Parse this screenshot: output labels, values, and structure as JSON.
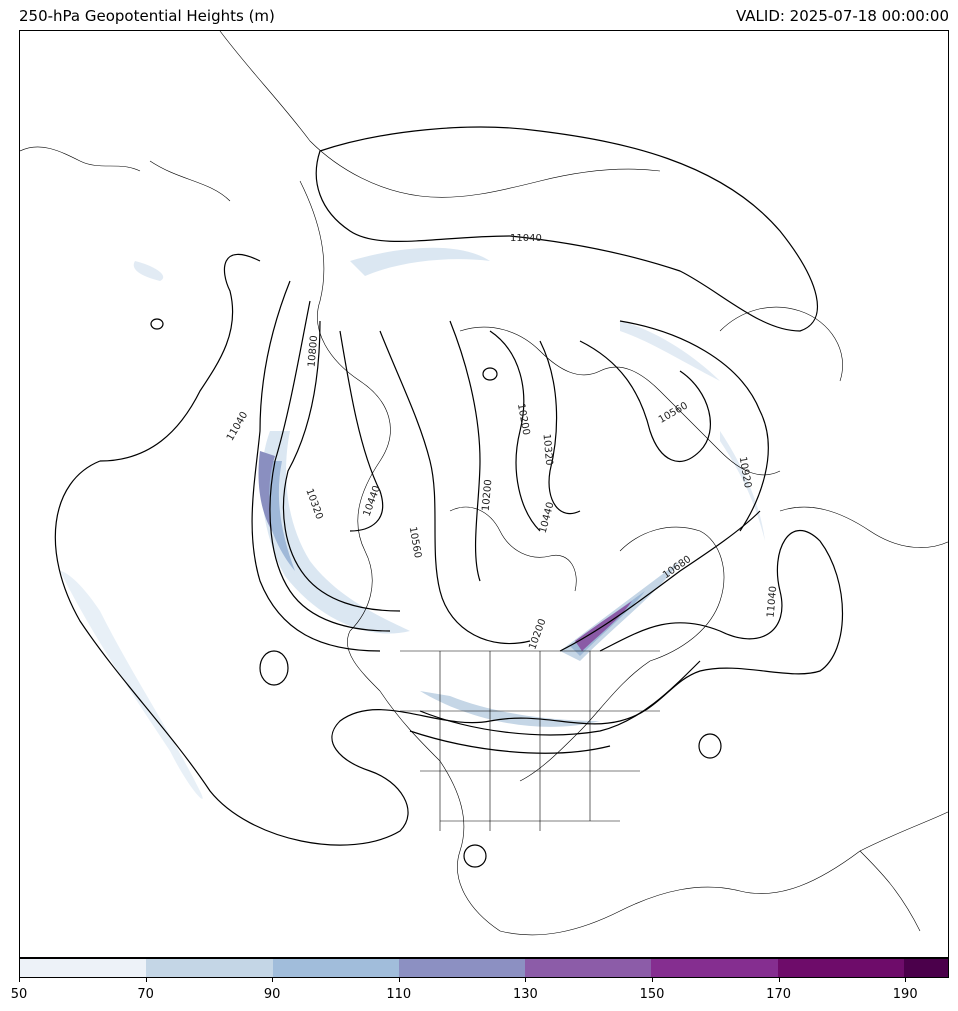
{
  "header": {
    "title": "250-hPa Geopotential Heights (m)",
    "valid": "VALID: 2025-07-18 00:00:00"
  },
  "map": {
    "contour_labels": [
      "11040",
      "10800",
      "11040",
      "10560",
      "10320",
      "10440",
      "10560",
      "10200",
      "10440",
      "10320",
      "10200",
      "10560",
      "10920",
      "10680",
      "11040",
      "10200"
    ],
    "shading_colors": [
      "#eef4fa",
      "#c5d6e6",
      "#9db8d6",
      "#8a8fc0",
      "#8a5aa6",
      "#7d2c8e",
      "#6b0f6e",
      "#4a004b"
    ]
  },
  "colorbar": {
    "ticks": [
      "50",
      "70",
      "90",
      "110",
      "130",
      "150",
      "170",
      "190"
    ],
    "colors": [
      "#edf2f8",
      "#c4d6e6",
      "#a1bddb",
      "#8c90c2",
      "#8c5ca8",
      "#852e90",
      "#6e0c6a",
      "#4b004b"
    ]
  }
}
